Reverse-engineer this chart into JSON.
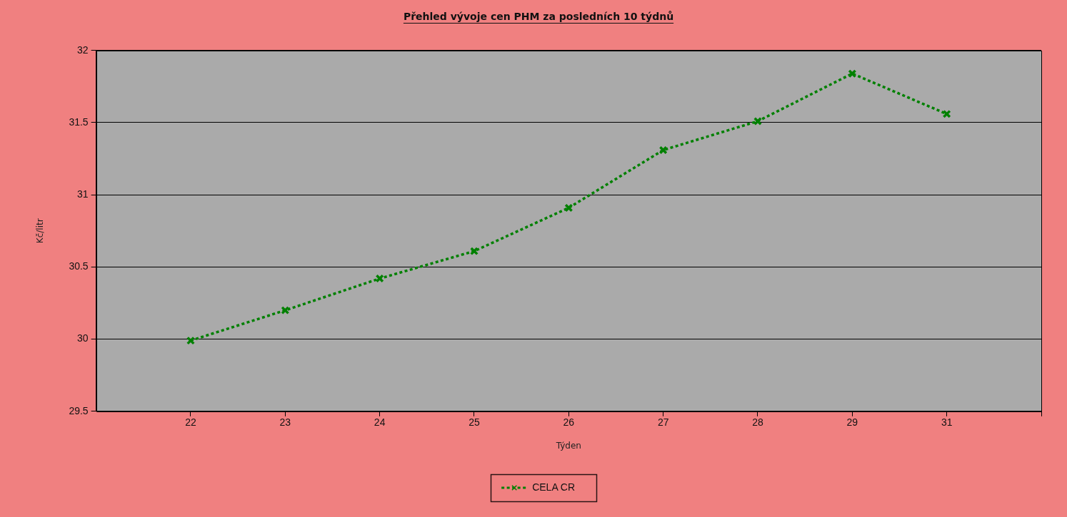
{
  "chart_data": {
    "type": "line",
    "title": "Přehled vývoje cen PHM za posledních 10 týdnů",
    "xlabel": "Týden",
    "ylabel": "Kč/litr",
    "categories": [
      "22",
      "23",
      "24",
      "25",
      "26",
      "27",
      "28",
      "29",
      "31"
    ],
    "series": [
      {
        "name": "CELA CR",
        "color": "#008000",
        "values": [
          29.99,
          30.2,
          30.42,
          30.61,
          30.91,
          31.31,
          31.51,
          31.84,
          31.56
        ]
      }
    ],
    "ylim": [
      29.5,
      32
    ],
    "yticks": [
      29.5,
      30,
      30.5,
      31,
      31.5,
      32
    ],
    "grid": "y",
    "legend": "bottom",
    "marker": "cross",
    "line_style": "dotted"
  }
}
